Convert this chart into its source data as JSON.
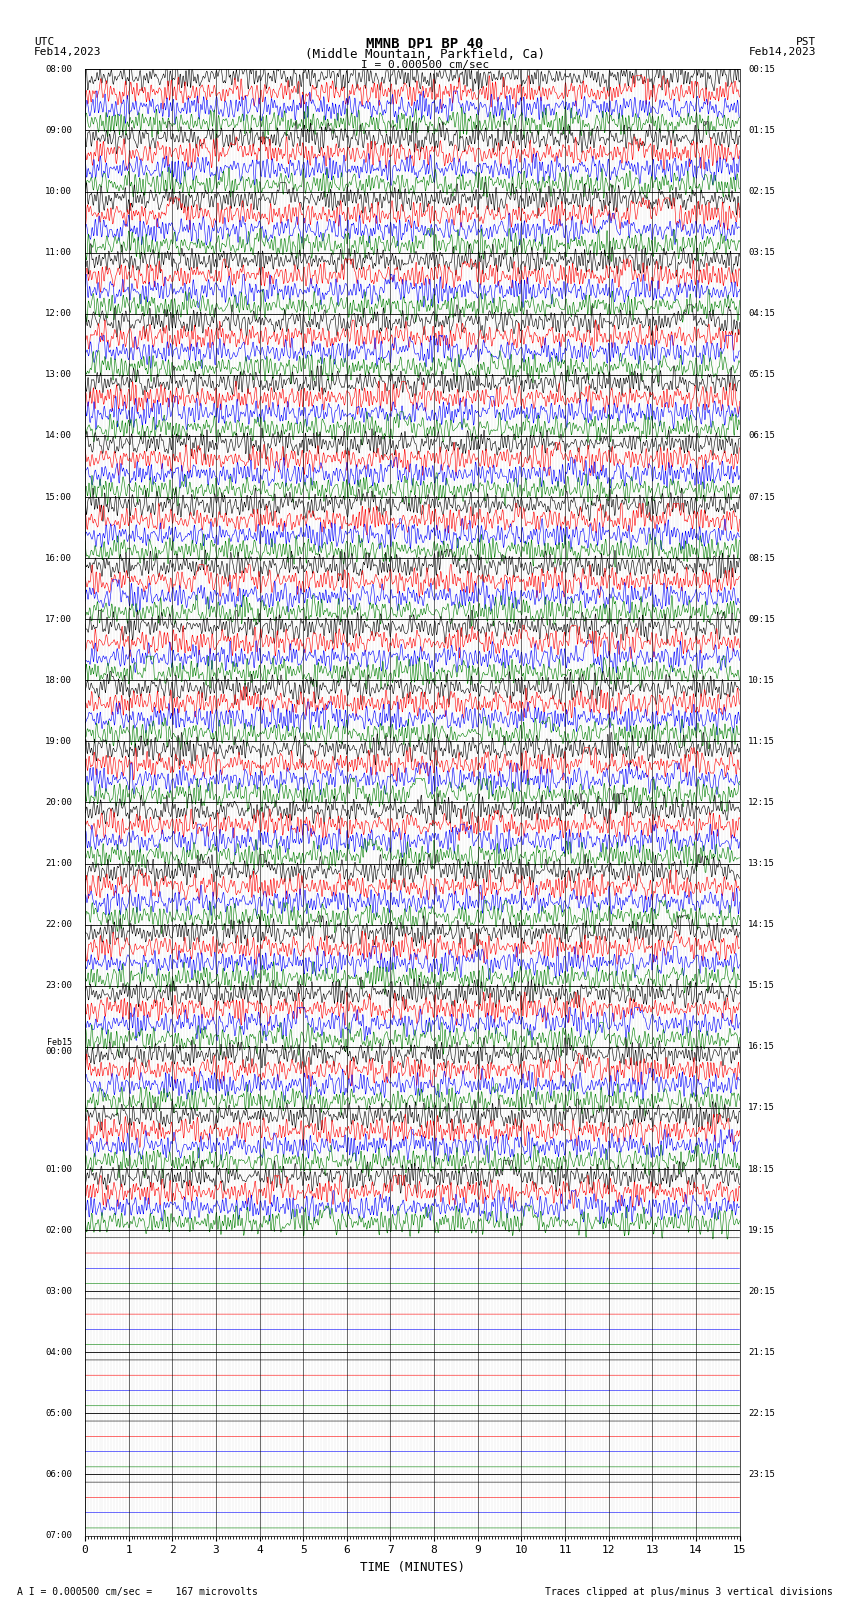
{
  "title_line1": "MMNB DP1 BP 40",
  "title_line2": "(Middle Mountain, Parkfield, Ca)",
  "scale_text": "I = 0.000500 cm/sec",
  "utc_label": "UTC",
  "utc_date": "Feb14,2023",
  "pst_label": "PST",
  "pst_date": "Feb14,2023",
  "footer_left": "A I = 0.000500 cm/sec =    167 microvolts",
  "footer_right": "Traces clipped at plus/minus 3 vertical divisions",
  "xlabel": "TIME (MINUTES)",
  "xlim": [
    0,
    15
  ],
  "xticks": [
    0,
    1,
    2,
    3,
    4,
    5,
    6,
    7,
    8,
    9,
    10,
    11,
    12,
    13,
    14,
    15
  ],
  "left_times": [
    "08:00",
    "09:00",
    "10:00",
    "11:00",
    "12:00",
    "13:00",
    "14:00",
    "15:00",
    "16:00",
    "17:00",
    "18:00",
    "19:00",
    "20:00",
    "21:00",
    "22:00",
    "23:00",
    "Feb15",
    "00:00",
    "01:00",
    "02:00",
    "03:00",
    "04:00",
    "05:00",
    "06:00",
    "07:00"
  ],
  "right_times": [
    "00:15",
    "01:15",
    "02:15",
    "03:15",
    "04:15",
    "05:15",
    "06:15",
    "07:15",
    "08:15",
    "09:15",
    "10:15",
    "11:15",
    "12:15",
    "13:15",
    "14:15",
    "15:15",
    "16:15",
    "17:15",
    "18:15",
    "19:15",
    "20:15",
    "21:15",
    "22:15",
    "23:15"
  ],
  "colors": [
    "black",
    "red",
    "blue",
    "green"
  ],
  "n_rows": 24,
  "traces_per_row": 4,
  "active_rows": 19,
  "background_color": "white",
  "grid_color": "#888888",
  "noise_seed": 42,
  "trace_amplitude": 0.09,
  "feb15_row": 16
}
